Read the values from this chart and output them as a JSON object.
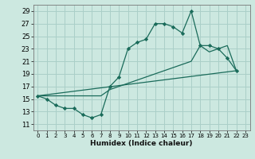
{
  "xlabel": "Humidex (Indice chaleur)",
  "bg_color": "#cce8e0",
  "grid_color": "#aacfc8",
  "line_color": "#1a6b5a",
  "xlim": [
    -0.5,
    23.5
  ],
  "ylim": [
    10,
    30
  ],
  "yticks": [
    11,
    13,
    15,
    17,
    19,
    21,
    23,
    25,
    27,
    29
  ],
  "xticks": [
    0,
    1,
    2,
    3,
    4,
    5,
    6,
    7,
    8,
    9,
    10,
    11,
    12,
    13,
    14,
    15,
    16,
    17,
    18,
    19,
    20,
    21,
    22,
    23
  ],
  "main_x": [
    0,
    1,
    2,
    3,
    4,
    5,
    6,
    7,
    8,
    9,
    10,
    11,
    12,
    13,
    14,
    15,
    16,
    17,
    18,
    19,
    20,
    21,
    22
  ],
  "main_y": [
    15.5,
    15,
    14,
    13.5,
    13.5,
    12.5,
    12.0,
    12.5,
    17.0,
    18.5,
    23,
    24,
    24.5,
    27.0,
    27.0,
    26.5,
    25.5,
    29.0,
    23.5,
    23.5,
    23.0,
    21.5,
    19.5
  ],
  "line2_x": [
    0,
    7,
    8,
    9,
    10,
    11,
    12,
    13,
    14,
    15,
    16,
    17,
    18,
    19,
    20,
    21,
    22
  ],
  "line2_y": [
    15.5,
    15.5,
    16.5,
    17.0,
    17.5,
    18.0,
    18.5,
    19.0,
    19.5,
    20.0,
    20.5,
    21.0,
    23.5,
    22.5,
    23.0,
    23.5,
    19.5
  ],
  "line3_x": [
    0,
    22
  ],
  "line3_y": [
    15.5,
    19.5
  ]
}
